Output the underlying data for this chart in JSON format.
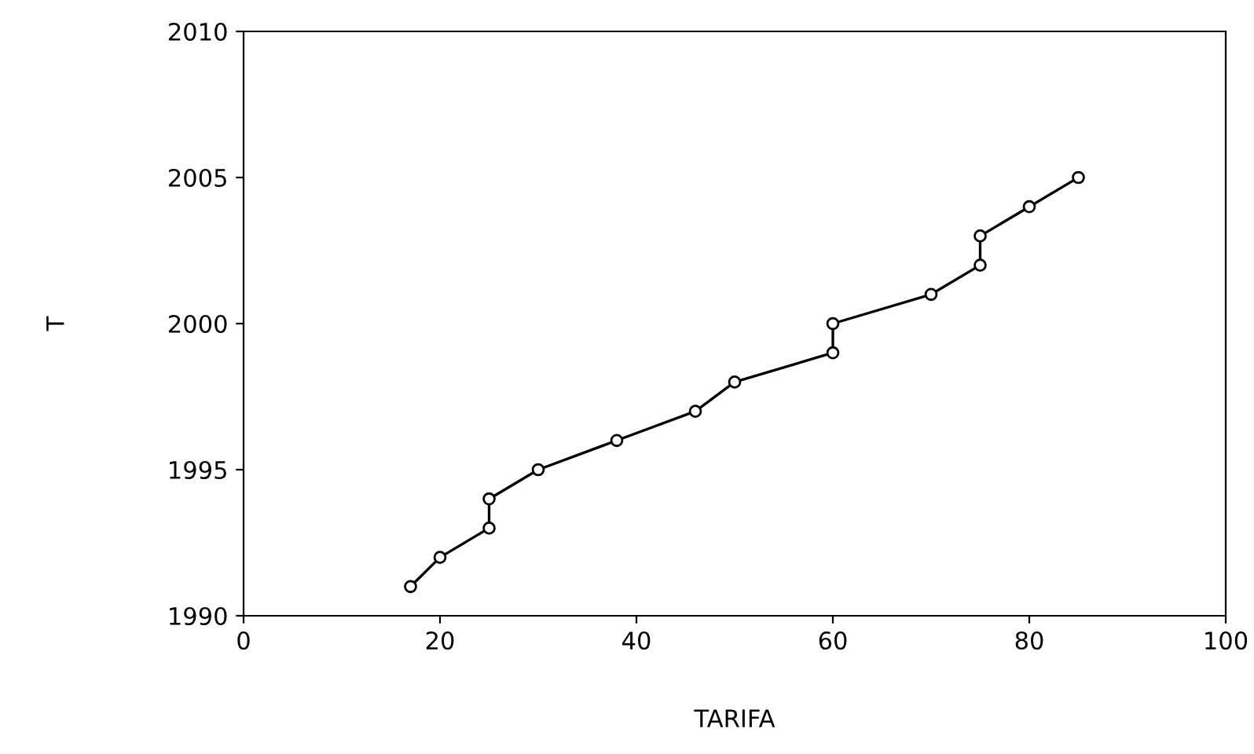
{
  "chart_data": {
    "type": "line",
    "xlabel": "TARIFA",
    "ylabel": "T",
    "series": [
      {
        "color": "#000000",
        "x": [
          17,
          20,
          25,
          25,
          30,
          38,
          46,
          50,
          60,
          60,
          70,
          75,
          75,
          80,
          85
        ],
        "values": [
          1991,
          1992,
          1993,
          1994,
          1995,
          1996,
          1997,
          1998,
          1999,
          2000,
          2001,
          2002,
          2003,
          2004,
          2005
        ]
      }
    ],
    "xlim": [
      0,
      100
    ],
    "xticks": [
      0,
      20,
      40,
      60,
      80,
      100
    ],
    "ylim": [
      1990,
      2010
    ],
    "yticks": [
      1990,
      1995,
      2000,
      2005,
      2010
    ],
    "marker": "circle",
    "line_style": "solid",
    "grid": false,
    "legend": false
  }
}
